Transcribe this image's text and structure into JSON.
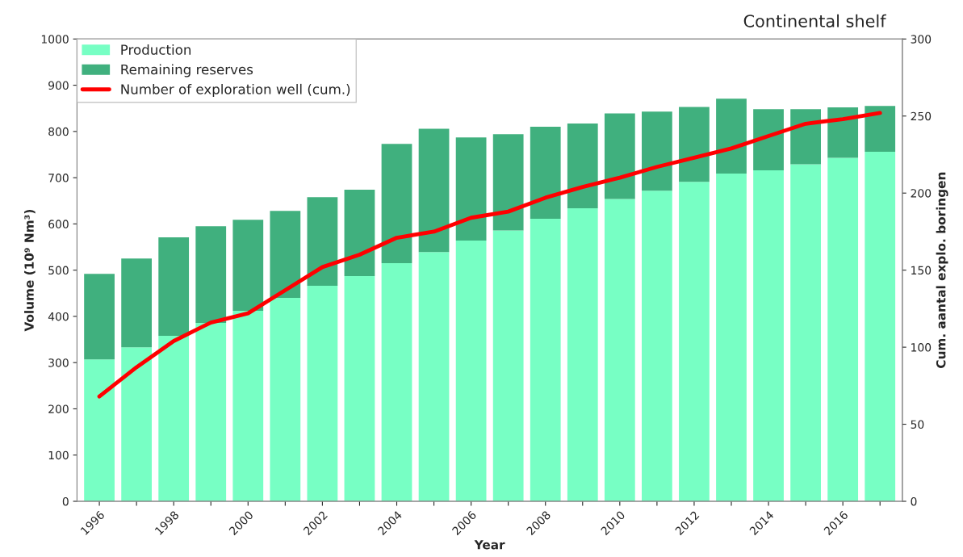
{
  "chart_data": {
    "type": "bar",
    "title": "Continental shelf",
    "xlabel": "Year",
    "ylabel": "Volume (10⁹ Nm³)",
    "y2label": "Cum. aantal explo. boringen",
    "categories": [
      "1996",
      null,
      "1998",
      null,
      "2000",
      null,
      "2002",
      null,
      "2004",
      null,
      "2006",
      null,
      "2008",
      null,
      "2010",
      null,
      "2012",
      null,
      "2014",
      null,
      "2016",
      null
    ],
    "stacked": true,
    "legend": "top left",
    "grid": false,
    "ylim": [
      0,
      1000
    ],
    "yticks": [
      0,
      100,
      200,
      300,
      400,
      500,
      600,
      700,
      800,
      900,
      1000
    ],
    "y2lim": [
      0,
      300
    ],
    "y2ticks": [
      0,
      50,
      100,
      150,
      200,
      250,
      300
    ],
    "series": [
      {
        "name": "Production",
        "color": "#77ffc4",
        "values": [
          307,
          333,
          358,
          386,
          412,
          440,
          466,
          487,
          515,
          539,
          564,
          586,
          611,
          634,
          654,
          672,
          691,
          709,
          716,
          729,
          743,
          756
        ]
      },
      {
        "name": "Remaining reserves",
        "color": "#40b07e",
        "values": [
          185,
          192,
          213,
          209,
          197,
          188,
          192,
          187,
          258,
          267,
          223,
          208,
          199,
          183,
          185,
          171,
          162,
          162,
          132,
          119,
          109,
          99
        ]
      },
      {
        "name": "Number of exploration well (cum.)",
        "type": "line",
        "axis": "y2",
        "color": "#ff0000",
        "line_style": "solid",
        "marker": "none",
        "values": [
          68,
          87,
          104,
          116,
          122,
          137,
          152,
          160,
          171,
          175,
          184,
          188,
          197,
          204,
          210,
          217,
          223,
          229,
          237,
          245,
          248,
          252
        ]
      }
    ]
  }
}
